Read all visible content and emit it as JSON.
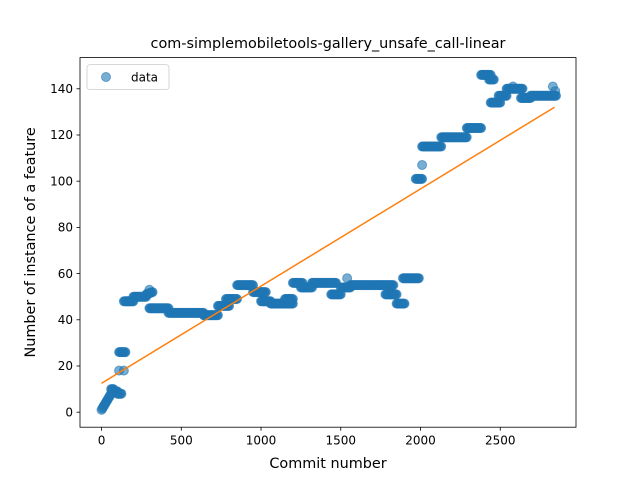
{
  "chart_data": {
    "type": "scatter",
    "title": "com-simplemobiletools-gallery_unsafe_call-linear",
    "xlabel": "Commit number",
    "ylabel": "Number of instance of a feature",
    "xlim": [
      -135,
      2975
    ],
    "ylim": [
      -6.5,
      153.5
    ],
    "xticks": [
      0,
      500,
      1000,
      1500,
      2000,
      2500
    ],
    "yticks": [
      0,
      20,
      40,
      60,
      80,
      100,
      120,
      140
    ],
    "grid": false,
    "legend": {
      "placement": "top-left",
      "entries": [
        "data"
      ]
    },
    "series": [
      {
        "name": "data",
        "kind": "markers",
        "color": "#1f77b4",
        "segments": [
          {
            "x": [
              0,
              60
            ],
            "y": [
              1,
              8
            ]
          },
          {
            "x": [
              60,
              75
            ],
            "y": [
              10,
              10
            ]
          },
          {
            "x": [
              75,
              100
            ],
            "y": [
              9,
              9
            ]
          },
          {
            "x": [
              100,
              125
            ],
            "y": [
              8,
              8
            ]
          },
          {
            "x": [
              110,
              150
            ],
            "y": [
              26,
              26
            ]
          },
          {
            "x": [
              140,
              200
            ],
            "y": [
              48,
              48
            ]
          },
          {
            "x": [
              200,
              280
            ],
            "y": [
              50,
              50
            ]
          },
          {
            "x": [
              280,
              320
            ],
            "y": [
              51,
              52
            ]
          },
          {
            "x": [
              300,
              420
            ],
            "y": [
              45,
              45
            ]
          },
          {
            "x": [
              420,
              640
            ],
            "y": [
              43,
              43
            ]
          },
          {
            "x": [
              640,
              730
            ],
            "y": [
              42,
              42
            ]
          },
          {
            "x": [
              730,
              800
            ],
            "y": [
              46,
              46
            ]
          },
          {
            "x": [
              780,
              850
            ],
            "y": [
              49,
              49
            ]
          },
          {
            "x": [
              850,
              950
            ],
            "y": [
              55,
              55
            ]
          },
          {
            "x": [
              950,
              1030
            ],
            "y": [
              52,
              52
            ]
          },
          {
            "x": [
              1000,
              1060
            ],
            "y": [
              48,
              48
            ]
          },
          {
            "x": [
              1060,
              1200
            ],
            "y": [
              47,
              47
            ]
          },
          {
            "x": [
              1150,
              1200
            ],
            "y": [
              49,
              49
            ]
          },
          {
            "x": [
              1200,
              1260
            ],
            "y": [
              56,
              56
            ]
          },
          {
            "x": [
              1250,
              1320
            ],
            "y": [
              54,
              54
            ]
          },
          {
            "x": [
              1320,
              1470
            ],
            "y": [
              56,
              56
            ]
          },
          {
            "x": [
              1440,
              1500
            ],
            "y": [
              51,
              51
            ]
          },
          {
            "x": [
              1500,
              1560
            ],
            "y": [
              54,
              54
            ]
          },
          {
            "x": [
              1560,
              1830
            ],
            "y": [
              55,
              55
            ]
          },
          {
            "x": [
              1780,
              1850
            ],
            "y": [
              51,
              51
            ]
          },
          {
            "x": [
              1850,
              1900
            ],
            "y": [
              47,
              47
            ]
          },
          {
            "x": [
              1890,
              1990
            ],
            "y": [
              58,
              58
            ]
          },
          {
            "x": [
              1970,
              2010
            ],
            "y": [
              101,
              101
            ]
          },
          {
            "x": [
              2010,
              2130
            ],
            "y": [
              115,
              115
            ]
          },
          {
            "x": [
              2130,
              2290
            ],
            "y": [
              119,
              119
            ]
          },
          {
            "x": [
              2290,
              2380
            ],
            "y": [
              123,
              123
            ]
          },
          {
            "x": [
              2380,
              2440
            ],
            "y": [
              146,
              146
            ]
          },
          {
            "x": [
              2430,
              2460
            ],
            "y": [
              144,
              144
            ]
          },
          {
            "x": [
              2440,
              2500
            ],
            "y": [
              134,
              134
            ]
          },
          {
            "x": [
              2490,
              2540
            ],
            "y": [
              137,
              137
            ]
          },
          {
            "x": [
              2540,
              2640
            ],
            "y": [
              140,
              140
            ]
          },
          {
            "x": [
              2630,
              2690
            ],
            "y": [
              136,
              136
            ]
          },
          {
            "x": [
              2690,
              2850
            ],
            "y": [
              137,
              137
            ]
          }
        ],
        "points": [
          {
            "x": 110,
            "y": 18
          },
          {
            "x": 140,
            "y": 18
          },
          {
            "x": 300,
            "y": 53
          },
          {
            "x": 1540,
            "y": 58
          },
          {
            "x": 2010,
            "y": 107
          },
          {
            "x": 2580,
            "y": 141
          },
          {
            "x": 2830,
            "y": 141
          },
          {
            "x": 2845,
            "y": 139
          }
        ]
      },
      {
        "kind": "line",
        "color": "#ff7f0e",
        "x": [
          0,
          2840
        ],
        "y": [
          12.5,
          132
        ]
      }
    ]
  }
}
